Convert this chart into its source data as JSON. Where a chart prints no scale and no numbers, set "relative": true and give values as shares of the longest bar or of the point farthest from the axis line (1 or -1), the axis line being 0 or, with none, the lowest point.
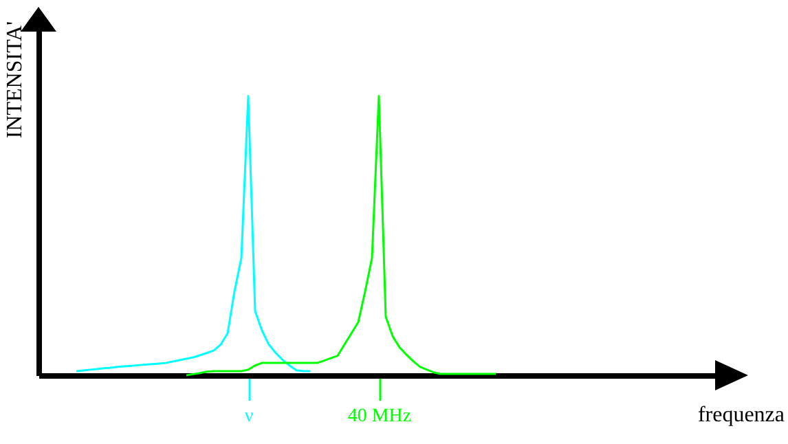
{
  "chart_data": {
    "type": "line",
    "relative": true,
    "xlabel": "frequenza",
    "ylabel": "INTENSITA'",
    "grid": false,
    "categories": [
      null,
      null,
      null,
      null,
      null,
      null,
      null,
      null,
      null,
      null,
      null,
      null,
      null,
      null,
      null,
      null,
      null,
      null,
      null,
      null,
      null,
      null,
      null,
      null,
      null,
      null,
      null,
      null,
      null,
      null,
      "ν",
      null,
      null,
      null,
      null,
      null,
      null,
      null,
      null,
      null,
      null,
      null,
      null,
      null,
      null,
      null,
      null,
      null,
      null,
      "40 MHz",
      null,
      null,
      null,
      null,
      null,
      null,
      null,
      null,
      null,
      null,
      null,
      null,
      null,
      null,
      null,
      null,
      null,
      null,
      null,
      null,
      null,
      null,
      null,
      null,
      null,
      null,
      null,
      null,
      null,
      null,
      null,
      null,
      null,
      null,
      null,
      null,
      null,
      null,
      null,
      null,
      null,
      null,
      null,
      null,
      null,
      null,
      null,
      null,
      null,
      null
    ],
    "series": [
      {
        "color": "#00ffff",
        "values": [
          null,
          null,
          null,
          null,
          null,
          0.015,
          0.017,
          0.02,
          0.022,
          0.025,
          0.027,
          0.03,
          0.032,
          0.034,
          0.036,
          0.038,
          0.04,
          0.042,
          0.044,
          0.049,
          0.054,
          0.059,
          0.064,
          0.072,
          0.08,
          0.089,
          0.11,
          0.15,
          0.3,
          0.42,
          1,
          0.23,
          0.16,
          0.11,
          0.08,
          0.055,
          0.035,
          0.018,
          0.015,
          0.015,
          null,
          null,
          null,
          null,
          null,
          null,
          null,
          null,
          null,
          null,
          null,
          null,
          null,
          null,
          null,
          null,
          null,
          null,
          null,
          null,
          null,
          null,
          null,
          null,
          null,
          null,
          null,
          null,
          null,
          null,
          null,
          null,
          null,
          null,
          null,
          null,
          null,
          null,
          null,
          null,
          null,
          null,
          null,
          null,
          null,
          null,
          null,
          null,
          null,
          null,
          null,
          null,
          null,
          null,
          null,
          null,
          null,
          null,
          null,
          null
        ]
      },
      {
        "color": "#00ff00",
        "values": [
          null,
          null,
          null,
          null,
          null,
          null,
          null,
          null,
          null,
          null,
          null,
          null,
          null,
          null,
          null,
          null,
          null,
          null,
          null,
          null,
          null,
          0,
          0.004,
          0.008,
          0.013,
          0.015,
          0.015,
          0.015,
          0.015,
          0.015,
          0.02,
          0.035,
          0.044,
          0.044,
          0.044,
          0.044,
          0.044,
          0.044,
          0.044,
          0.044,
          0.044,
          0.052,
          0.061,
          0.07,
          0.11,
          0.15,
          0.19,
          0.3,
          0.42,
          1,
          0.21,
          0.14,
          0.1,
          0.074,
          0.05,
          0.03,
          0.02,
          0.01,
          0.005,
          0.005,
          0.005,
          0.005,
          0.005,
          0.005,
          0.005,
          0.005,
          0.005,
          null,
          null,
          null,
          null,
          null,
          null,
          null,
          null,
          null,
          null,
          null,
          null,
          null,
          null,
          null,
          null,
          null,
          null,
          null,
          null,
          null,
          null,
          null,
          null,
          null,
          null,
          null,
          null,
          null,
          null,
          null,
          null,
          null
        ]
      }
    ]
  }
}
